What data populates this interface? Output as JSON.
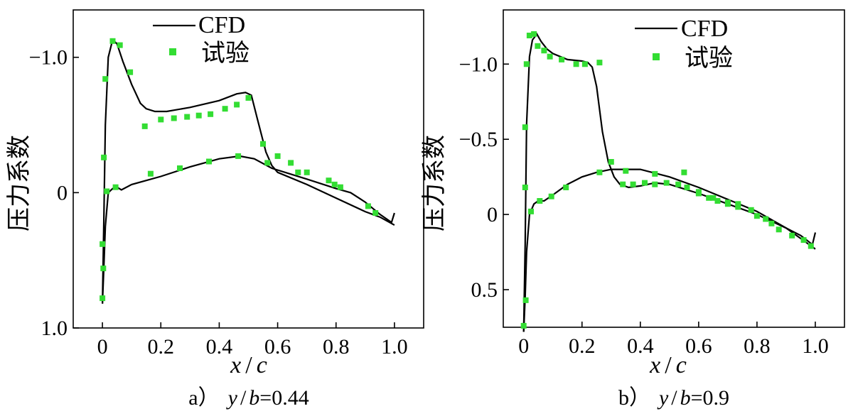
{
  "chart_data": [
    {
      "type": "line",
      "panel_label": "a）",
      "caption_var_y": "y",
      "caption_sep": "/",
      "caption_var_b": "b",
      "caption_value": "=0.44",
      "xlabel_x": "x",
      "xlabel_sep": "/",
      "xlabel_c": "c",
      "ylabel": "压力系数",
      "xlim": [
        -0.1,
        1.1
      ],
      "ylim": [
        1.0,
        -1.35
      ],
      "y_inverted": true,
      "xticks": [
        0,
        0.2,
        0.4,
        0.6,
        0.8,
        1.0
      ],
      "xtick_labels": [
        "0",
        "0.2",
        "0.4",
        "0.6",
        "0.8",
        "1.0"
      ],
      "yticks": [
        -1.0,
        0,
        1.0
      ],
      "ytick_labels": [
        "−1.0",
        "0",
        "1.0"
      ],
      "legend": {
        "position": "top",
        "line_label": "CFD",
        "marker_label": "试验"
      },
      "series": [
        {
          "name": "CFD",
          "style": "line",
          "upper": {
            "x": [
              0.0,
              0.005,
              0.01,
              0.02,
              0.035,
              0.05,
              0.07,
              0.1,
              0.13,
              0.15,
              0.18,
              0.22,
              0.3,
              0.4,
              0.46,
              0.49,
              0.51,
              0.53,
              0.56,
              0.58,
              0.6,
              0.7,
              0.8,
              0.9,
              0.95,
              1.0
            ],
            "y": [
              0.82,
              0.2,
              -0.5,
              -1.0,
              -1.13,
              -1.1,
              -0.97,
              -0.8,
              -0.66,
              -0.62,
              -0.6,
              -0.6,
              -0.63,
              -0.68,
              -0.73,
              -0.74,
              -0.72,
              -0.55,
              -0.3,
              -0.2,
              -0.15,
              -0.06,
              0.04,
              0.14,
              0.18,
              0.24
            ]
          },
          "lower": {
            "x": [
              0.0,
              0.005,
              0.01,
              0.02,
              0.035,
              0.05,
              0.065,
              0.1,
              0.2,
              0.3,
              0.4,
              0.47,
              0.52,
              0.58,
              0.7,
              0.8,
              0.85,
              0.9,
              0.95,
              0.99,
              1.0
            ],
            "y": [
              0.82,
              0.55,
              0.25,
              0.0,
              -0.03,
              -0.04,
              -0.02,
              -0.06,
              -0.12,
              -0.19,
              -0.25,
              -0.27,
              -0.25,
              -0.18,
              -0.1,
              -0.03,
              0.0,
              0.07,
              0.16,
              0.22,
              0.15
            ]
          }
        },
        {
          "name": "试验",
          "style": "marker",
          "upper": {
            "x": [
              0.005,
              0.01,
              0.035,
              0.06,
              0.095,
              0.145,
              0.2,
              0.245,
              0.29,
              0.33,
              0.37,
              0.42,
              0.46,
              0.5,
              0.55
            ],
            "y": [
              -0.26,
              -0.84,
              -1.12,
              -1.09,
              -0.89,
              -0.49,
              -0.54,
              -0.55,
              -0.56,
              -0.57,
              -0.58,
              -0.62,
              -0.65,
              -0.7,
              -0.36
            ]
          },
          "lower": {
            "x": [
              0.0,
              0.0,
              0.003,
              0.015,
              0.045,
              0.165,
              0.265,
              0.365,
              0.465,
              0.565,
              0.6,
              0.645,
              0.67,
              0.7,
              0.775,
              0.795,
              0.815,
              0.91,
              0.935
            ],
            "y": [
              0.78,
              0.38,
              0.56,
              -0.01,
              -0.04,
              -0.14,
              -0.18,
              -0.23,
              -0.27,
              -0.22,
              -0.27,
              -0.22,
              -0.15,
              -0.15,
              -0.09,
              -0.06,
              -0.04,
              0.1,
              0.15
            ]
          }
        }
      ]
    },
    {
      "type": "line",
      "panel_label": "b）",
      "caption_var_y": "y",
      "caption_sep": "/",
      "caption_var_b": "b",
      "caption_value": "=0.9",
      "xlabel_x": "x",
      "xlabel_sep": "/",
      "xlabel_c": "c",
      "ylabel": "压力系数",
      "xlim": [
        -0.07,
        1.1
      ],
      "ylim": [
        0.75,
        -1.36
      ],
      "y_inverted": true,
      "xticks": [
        0,
        0.2,
        0.4,
        0.6,
        0.8,
        1.0
      ],
      "xtick_labels": [
        "0",
        "0.2",
        "0.4",
        "0.6",
        "0.8",
        "1.0"
      ],
      "yticks": [
        -1.0,
        -0.5,
        0,
        0.5
      ],
      "ytick_labels": [
        "−1.0",
        "−0.5",
        "0",
        "0.5"
      ],
      "legend": {
        "position": "top",
        "line_label": "CFD",
        "marker_label": "试验"
      },
      "series": [
        {
          "name": "CFD",
          "style": "line",
          "upper": {
            "x": [
              0.0,
              0.005,
              0.01,
              0.02,
              0.03,
              0.045,
              0.06,
              0.08,
              0.1,
              0.15,
              0.2,
              0.22,
              0.235,
              0.25,
              0.27,
              0.29,
              0.31,
              0.33,
              0.36,
              0.4,
              0.45,
              0.5,
              0.6,
              0.7,
              0.8,
              0.9,
              0.95,
              0.99,
              1.0
            ],
            "y": [
              0.78,
              0.2,
              -0.6,
              -1.05,
              -1.16,
              -1.2,
              -1.15,
              -1.1,
              -1.07,
              -1.03,
              -1.02,
              -1.01,
              -0.98,
              -0.85,
              -0.55,
              -0.35,
              -0.25,
              -0.2,
              -0.18,
              -0.19,
              -0.21,
              -0.2,
              -0.14,
              -0.07,
              0.0,
              0.09,
              0.14,
              0.2,
              0.12
            ]
          },
          "lower": {
            "x": [
              0.0,
              0.005,
              0.01,
              0.02,
              0.035,
              0.05,
              0.07,
              0.1,
              0.15,
              0.2,
              0.25,
              0.3,
              0.4,
              0.5,
              0.6,
              0.7,
              0.8,
              0.9,
              0.95,
              1.0
            ],
            "y": [
              0.78,
              0.55,
              0.25,
              0.0,
              -0.07,
              -0.09,
              -0.09,
              -0.13,
              -0.2,
              -0.25,
              -0.28,
              -0.3,
              -0.3,
              -0.25,
              -0.18,
              -0.1,
              -0.02,
              0.09,
              0.16,
              0.23
            ]
          }
        },
        {
          "name": "试验",
          "style": "marker",
          "upper": {
            "x": [
              0.005,
              0.01,
              0.02,
              0.035,
              0.048,
              0.07,
              0.09,
              0.13,
              0.18,
              0.21,
              0.26,
              0.3,
              0.34,
              0.375,
              0.415,
              0.45,
              0.49,
              0.53,
              0.56,
              0.6,
              0.635,
              0.665,
              0.7,
              0.735,
              0.78
            ],
            "y": [
              -0.58,
              -1.0,
              -1.19,
              -1.2,
              -1.12,
              -1.09,
              -1.05,
              -1.03,
              -1.0,
              -1.0,
              -1.01,
              -0.35,
              -0.2,
              -0.2,
              -0.21,
              -0.2,
              -0.21,
              -0.2,
              -0.18,
              -0.14,
              -0.11,
              -0.09,
              -0.07,
              -0.05,
              -0.03
            ]
          },
          "lower": {
            "x": [
              0.0,
              0.005,
              0.007,
              0.025,
              0.055,
              0.095,
              0.145,
              0.26,
              0.35,
              0.45,
              0.55,
              0.6,
              0.65,
              0.7,
              0.735,
              0.8,
              0.83,
              0.85,
              0.875,
              0.92,
              0.96,
              0.985
            ],
            "y": [
              0.74,
              -0.18,
              0.57,
              -0.02,
              -0.09,
              -0.12,
              -0.18,
              -0.28,
              -0.29,
              -0.27,
              -0.28,
              -0.15,
              -0.11,
              -0.08,
              -0.07,
              0.01,
              0.03,
              0.06,
              0.1,
              0.14,
              0.17,
              0.21
            ]
          }
        }
      ]
    }
  ]
}
